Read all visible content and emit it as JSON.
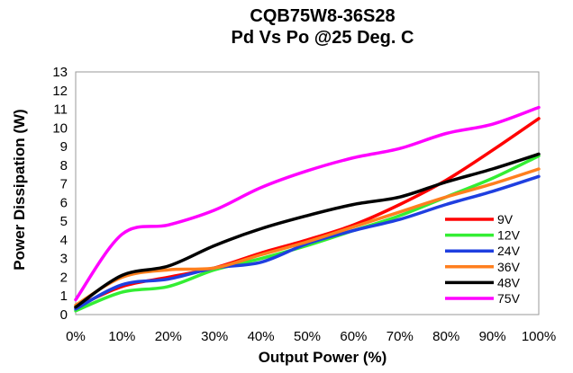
{
  "chart_data": {
    "type": "line",
    "title": "CQB75W8-36S28",
    "subtitle": "Pd Vs Po @25 Deg. C",
    "xlabel": "Output Power (%)",
    "ylabel": "Power Dissipation (W)",
    "x": [
      0,
      10,
      20,
      30,
      40,
      50,
      60,
      70,
      80,
      90,
      100
    ],
    "xticks": [
      "0%",
      "10%",
      "20%",
      "30%",
      "40%",
      "50%",
      "60%",
      "70%",
      "80%",
      "90%",
      "100%"
    ],
    "xlim": [
      0,
      100
    ],
    "ylim": [
      0,
      13
    ],
    "yticks": [
      0,
      1,
      2,
      3,
      4,
      5,
      6,
      7,
      8,
      9,
      10,
      11,
      12,
      13
    ],
    "grid": false,
    "legend_position": "bottom-right",
    "series": [
      {
        "name": "9V",
        "color": "#ff0000",
        "values": [
          0.4,
          1.5,
          2.0,
          2.5,
          3.3,
          4.0,
          4.8,
          5.9,
          7.2,
          8.8,
          10.5
        ]
      },
      {
        "name": "12V",
        "color": "#33ee33",
        "values": [
          0.2,
          1.2,
          1.5,
          2.4,
          3.0,
          3.7,
          4.5,
          5.3,
          6.3,
          7.3,
          8.5
        ]
      },
      {
        "name": "24V",
        "color": "#1f3fe0",
        "values": [
          0.3,
          1.6,
          1.9,
          2.5,
          2.8,
          3.8,
          4.5,
          5.1,
          5.9,
          6.6,
          7.4
        ]
      },
      {
        "name": "36V",
        "color": "#ff7f1e",
        "values": [
          0.5,
          2.0,
          2.4,
          2.5,
          3.2,
          3.9,
          4.7,
          5.5,
          6.3,
          7.0,
          7.8
        ]
      },
      {
        "name": "48V",
        "color": "#000000",
        "values": [
          0.4,
          2.1,
          2.6,
          3.7,
          4.6,
          5.3,
          5.9,
          6.3,
          7.1,
          7.8,
          8.6
        ]
      },
      {
        "name": "75V",
        "color": "#ff00ff",
        "values": [
          0.8,
          4.3,
          4.8,
          5.6,
          6.8,
          7.7,
          8.4,
          8.9,
          9.7,
          10.2,
          11.1
        ]
      }
    ]
  }
}
